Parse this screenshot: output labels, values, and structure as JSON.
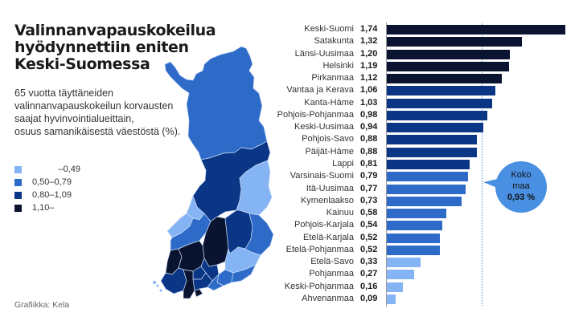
{
  "header": {
    "title": "Valinnanvapauskokeilua hyödynnettiin eniten Keski-Suomessa",
    "subtitle_lines": [
      "65 vuotta täyttäneiden",
      "valinnanvapauskokeilun korvausten",
      "saajat hyvinvointialueittain,",
      "osuus samanikäisestä väestöstä (%)."
    ]
  },
  "legend": [
    {
      "label": "–0,49",
      "color": "#85b4f4"
    },
    {
      "label": "0,50–0,79",
      "color": "#2e6bc9"
    },
    {
      "label": "0,80–1,09",
      "color": "#0b3585"
    },
    {
      "label": "1,10–",
      "color": "#0a1430"
    }
  ],
  "credit": "Grafiikka: Kela",
  "average": {
    "line1": "Koko",
    "line2": "maa",
    "value": "0,93 %",
    "numeric": 0.93,
    "color": "#4a90e2"
  },
  "chart_data": {
    "type": "bar",
    "orientation": "horizontal",
    "title": "Valinnanvapauskokeilua hyödynnettiin eniten Keski-Suomessa",
    "subtitle": "65 vuotta täyttäneiden valinnanvapauskokeilun korvausten saajat hyvinvointialueittain, osuus samanikäisestä väestöstä (%).",
    "xlabel": "",
    "ylabel": "",
    "reference_line": {
      "label": "Koko maa 0,93 %",
      "value": 0.93
    },
    "categories": [
      "Keski-Suomi",
      "Satakunta",
      "Länsi-Uusimaa",
      "Helsinki",
      "Pirkanmaa",
      "Vantaa ja Kerava",
      "Kanta-Häme",
      "Pohjois-Pohjanmaa",
      "Keski-Uusimaa",
      "Pohjois-Savo",
      "Päijät-Häme",
      "Lappi",
      "Varsinais-Suomi",
      "Itä-Uusimaa",
      "Kymenlaakso",
      "Kainuu",
      "Pohjois-Karjala",
      "Etelä-Karjala",
      "Etelä-Pohjanmaa",
      "Etelä-Savo",
      "Pohjanmaa",
      "Keski-Pohjanmaa",
      "Ahvenanmaa"
    ],
    "values": [
      1.74,
      1.32,
      1.2,
      1.19,
      1.12,
      1.06,
      1.03,
      0.98,
      0.94,
      0.88,
      0.88,
      0.81,
      0.79,
      0.77,
      0.73,
      0.58,
      0.54,
      0.52,
      0.52,
      0.33,
      0.27,
      0.16,
      0.09
    ],
    "value_labels": [
      "1,74",
      "1,32",
      "1,20",
      "1,19",
      "1,12",
      "1,06",
      "1,03",
      "0,98",
      "0,94",
      "0,88",
      "0,88",
      "0,81",
      "0,79",
      "0,77",
      "0,73",
      "0,58",
      "0,54",
      "0,52",
      "0,52",
      "0,33",
      "0,27",
      "0,16",
      "0,09"
    ],
    "xlim": [
      0,
      1.74
    ],
    "grid": false,
    "legend_position": "left",
    "color_bins": [
      {
        "range": "–0,49",
        "color": "#85b4f4"
      },
      {
        "range": "0,50–0,79",
        "color": "#2e6bc9"
      },
      {
        "range": "0,80–1,09",
        "color": "#0b3585"
      },
      {
        "range": "1,10–",
        "color": "#0a1430"
      }
    ]
  }
}
